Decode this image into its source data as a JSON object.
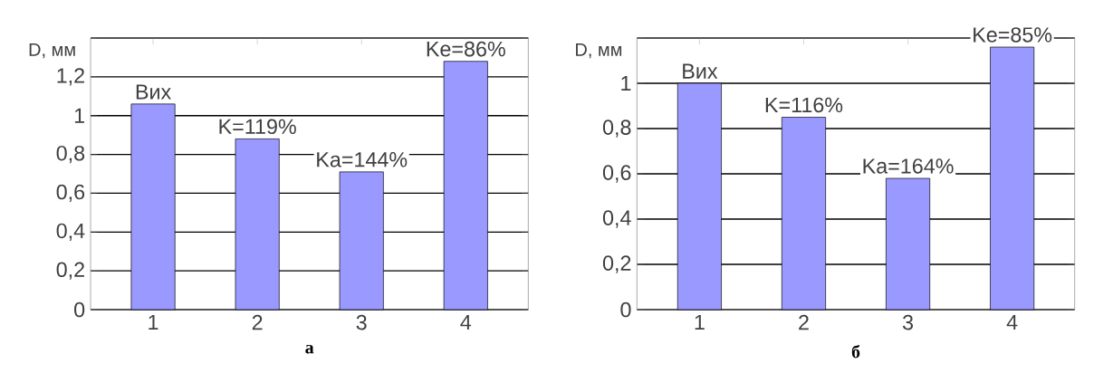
{
  "chart_data": [
    {
      "type": "bar",
      "ylabel": "D, мм",
      "categories": [
        "1",
        "2",
        "3",
        "4"
      ],
      "values": [
        1.06,
        0.88,
        0.71,
        1.28
      ],
      "color": "#9999ff",
      "ylim": [
        0,
        1.4
      ],
      "yticks": [
        0,
        {
          "value": 0.2,
          "label": "0,2"
        },
        {
          "value": 0.4,
          "label": "0,4"
        },
        {
          "value": 0.6,
          "label": "0,6"
        },
        {
          "value": 0.8,
          "label": "0,8"
        },
        1,
        {
          "value": 1.2,
          "label": "1,2"
        },
        {
          "value": 1.4,
          "label": null
        }
      ],
      "grid": "y",
      "annotations": [
        {
          "text": "Вих",
          "x": "1",
          "y": 1.06
        },
        {
          "text": "K=119%",
          "x": "2",
          "y": 0.88
        },
        {
          "text": "Ka=144%",
          "x": "3",
          "y": 0.71
        },
        {
          "text": "Ke=86%",
          "x": "4",
          "y": 1.28
        },
        "а"
      ]
    },
    {
      "type": "bar",
      "ylabel": "D, мм",
      "categories": [
        "1",
        "2",
        "3",
        "4"
      ],
      "values": [
        1.0,
        0.85,
        0.58,
        1.16
      ],
      "color": "#9999ff",
      "ylim": [
        0,
        1.2
      ],
      "yticks": [
        0,
        {
          "value": 0.2,
          "label": "0,2"
        },
        {
          "value": 0.4,
          "label": "0,4"
        },
        {
          "value": 0.6,
          "label": "0,6"
        },
        {
          "value": 0.8,
          "label": "0,8"
        },
        1,
        {
          "value": 1.2,
          "label": null
        }
      ],
      "grid": "y",
      "annotations": [
        {
          "text": "Вих",
          "x": "1",
          "y": 1.0
        },
        {
          "text": "K=116%",
          "x": "2",
          "y": 0.85
        },
        {
          "text": "Ka=164%",
          "x": "3",
          "y": 0.58
        },
        {
          "text": "Ke=85%",
          "x": "4",
          "y": 1.16
        },
        "б"
      ]
    }
  ]
}
